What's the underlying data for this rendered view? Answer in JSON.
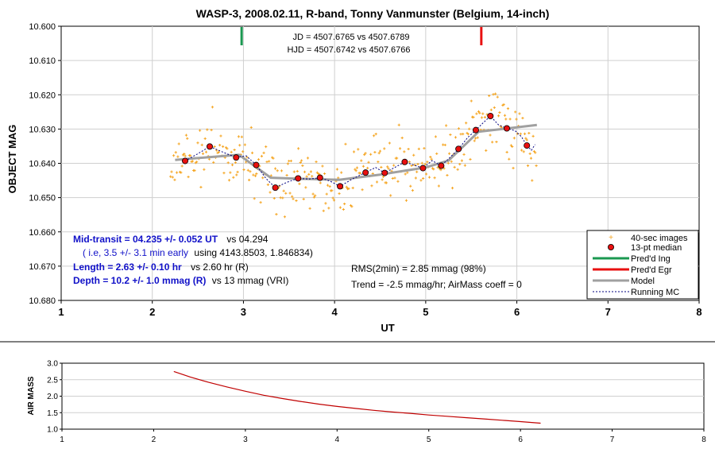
{
  "title": "WASP-3, 2008.02.11, R-band, Tonny Vanmunster (Belgium, 14-inch)",
  "annotations": {
    "jd": "JD = 4507.6765 vs 4507.6789",
    "hjd": "HJD = 4507.6742 vs 4507.6766",
    "mid_label": "Mid-transit = 04.235 +/- 0.052 UT",
    "mid_vs": "vs 04.294",
    "early_blue": "( i.e, 3.5 +/- 3.1 min early",
    "early_black": "using 4143.8503, 1.846834)",
    "length_label": "Length = 2.63 +/- 0.10 hr",
    "length_vs": "vs 2.60 hr (R)",
    "depth_label": "Depth = 10.2 +/- 1.0 mmag (R)",
    "depth_vs": "vs 13 mmag (VRI)",
    "rms": "RMS(2min) = 2.85 mmag (98%)",
    "trend": "Trend = -2.5 mmag/hr; AirMass coeff = 0"
  },
  "chart_data": [
    {
      "type": "scatter",
      "title": "WASP-3, 2008.02.11, R-band, Tonny Vanmunster (Belgium, 14-inch)",
      "xlabel": "UT",
      "ylabel": "OBJECT MAG",
      "xlim": [
        1,
        8
      ],
      "ylim": [
        10.68,
        10.6
      ],
      "y_inverted": true,
      "x_ticks": [
        "1",
        "2",
        "3",
        "4",
        "5",
        "6",
        "7",
        "8"
      ],
      "y_ticks": [
        "10.600",
        "10.610",
        "10.620",
        "10.630",
        "10.640",
        "10.650",
        "10.660",
        "10.670",
        "10.680"
      ],
      "legend_position": "bottom-right",
      "legend": [
        "40-sec images",
        "13-pt median",
        "Pred'd Ing",
        "Pred'd Egr",
        "Model",
        "Running MC"
      ],
      "colors": {
        "images": "#f5a623",
        "median_fill": "#e81010",
        "ingress": "#1a9850",
        "egress": "#e81010",
        "model": "#a0a0a0",
        "running": "#000080",
        "blue_text": "#1010c8"
      },
      "predicted_ingress_ut": 2.98,
      "predicted_egress_ut": 5.61,
      "model": {
        "x": [
          2.25,
          2.95,
          3.3,
          3.6,
          4.05,
          4.5,
          5.0,
          5.25,
          5.58,
          6.22
        ],
        "y": [
          10.639,
          10.6375,
          10.6442,
          10.6445,
          10.6448,
          10.6433,
          10.6412,
          10.6392,
          10.6308,
          10.6288
        ]
      },
      "median": {
        "x": [
          2.36,
          2.63,
          2.92,
          3.14,
          3.35,
          3.6,
          3.84,
          4.06,
          4.34,
          4.55,
          4.77,
          4.97,
          5.17,
          5.36,
          5.55,
          5.71,
          5.89,
          6.11
        ],
        "y": [
          10.6393,
          10.6351,
          10.6383,
          10.6405,
          10.6471,
          10.6444,
          10.6442,
          10.6467,
          10.6427,
          10.6428,
          10.6396,
          10.6414,
          10.6407,
          10.6358,
          10.6303,
          10.6262,
          10.6298,
          10.6348
        ]
      },
      "running_mc": {
        "x": [
          2.36,
          2.5,
          2.63,
          2.78,
          2.92,
          3.03,
          3.14,
          3.25,
          3.35,
          3.48,
          3.6,
          3.72,
          3.84,
          3.95,
          4.06,
          4.2,
          4.34,
          4.45,
          4.55,
          4.66,
          4.77,
          4.87,
          4.97,
          5.07,
          5.17,
          5.27,
          5.36,
          5.46,
          5.55,
          5.63,
          5.71,
          5.8,
          5.89,
          5.98,
          6.05,
          6.11,
          6.16,
          6.2
        ],
        "y": [
          10.6393,
          10.6372,
          10.6351,
          10.6368,
          10.6383,
          10.6378,
          10.6405,
          10.6445,
          10.6471,
          10.6455,
          10.6444,
          10.6446,
          10.6442,
          10.6452,
          10.6467,
          10.6445,
          10.6427,
          10.6412,
          10.6428,
          10.6412,
          10.6396,
          10.6405,
          10.6414,
          10.6392,
          10.6407,
          10.6382,
          10.6358,
          10.6325,
          10.6303,
          10.6282,
          10.6262,
          10.6288,
          10.6298,
          10.6305,
          10.6322,
          10.6348,
          10.6362,
          10.6345
        ]
      }
    },
    {
      "type": "line",
      "xlabel": "",
      "ylabel": "AIR MASS",
      "xlim": [
        1,
        8
      ],
      "ylim": [
        1.0,
        3.0
      ],
      "x_ticks": [
        "1",
        "2",
        "3",
        "4",
        "5",
        "6",
        "7",
        "8"
      ],
      "y_ticks": [
        "1.0",
        "1.5",
        "2.0",
        "2.5",
        "3.0"
      ],
      "colors": {
        "line": "#c00000"
      },
      "x": [
        2.22,
        2.4,
        2.6,
        2.8,
        3.0,
        3.2,
        3.4,
        3.6,
        3.8,
        4.0,
        4.2,
        4.4,
        4.6,
        4.8,
        5.0,
        5.2,
        5.4,
        5.6,
        5.8,
        6.0,
        6.22
      ],
      "y": [
        2.75,
        2.58,
        2.42,
        2.28,
        2.15,
        2.03,
        1.93,
        1.84,
        1.76,
        1.69,
        1.63,
        1.57,
        1.52,
        1.48,
        1.43,
        1.39,
        1.35,
        1.31,
        1.27,
        1.23,
        1.18
      ]
    }
  ]
}
